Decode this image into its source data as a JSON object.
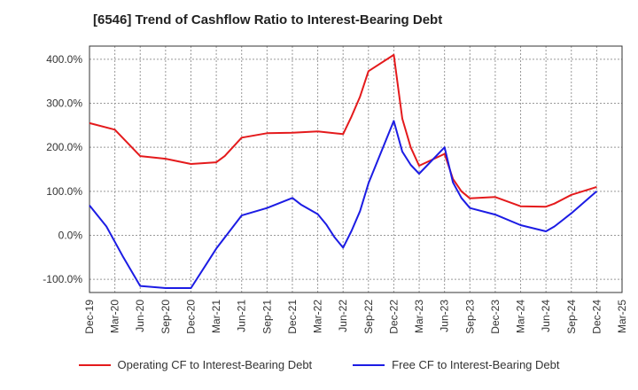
{
  "title": "[6546]  Trend of Cashflow Ratio to Interest-Bearing Debt",
  "colors": {
    "operating": "#e41a1c",
    "free": "#1c1ce4"
  },
  "chart_data": {
    "type": "line",
    "title": "[6546]  Trend of Cashflow Ratio to Interest-Bearing Debt",
    "xlabel": "",
    "ylabel": "",
    "ylim": [
      -130,
      430
    ],
    "y_ticks": [
      400,
      300,
      200,
      100,
      0,
      -100
    ],
    "y_tick_labels": [
      "400.0%",
      "300.0%",
      "200.0%",
      "100.0%",
      "0.0%",
      "-100.0%"
    ],
    "x_ticks": [
      "2019-12",
      "2020-03",
      "2020-06",
      "2020-09",
      "2020-12",
      "2021-03",
      "2021-06",
      "2021-09",
      "2021-12",
      "2022-03",
      "2022-06",
      "2022-09",
      "2022-12",
      "2023-03",
      "2023-06",
      "2023-09",
      "2023-12",
      "2024-03",
      "2024-06",
      "2024-09",
      "2024-12",
      "2025-03"
    ],
    "x_tick_labels": [
      "Dec-19",
      "Mar-20",
      "Jun-20",
      "Sep-20",
      "Dec-20",
      "Mar-21",
      "Jun-21",
      "Sep-21",
      "Dec-21",
      "Mar-22",
      "Jun-22",
      "Sep-22",
      "Dec-22",
      "Mar-23",
      "Jun-23",
      "Sep-23",
      "Dec-23",
      "Mar-24",
      "Jun-24",
      "Sep-24",
      "Dec-24",
      "Mar-25"
    ],
    "grid": true,
    "legend_position": "bottom",
    "series": [
      {
        "name": "Operating CF to Interest-Bearing Debt",
        "color_key": "operating",
        "points": [
          [
            "2019-12",
            255
          ],
          [
            "2020-03",
            240
          ],
          [
            "2020-06",
            180
          ],
          [
            "2020-09",
            174
          ],
          [
            "2020-12",
            162
          ],
          [
            "2021-03",
            166
          ],
          [
            "2021-04",
            180
          ],
          [
            "2021-06",
            222
          ],
          [
            "2021-09",
            232
          ],
          [
            "2021-12",
            233
          ],
          [
            "2022-03",
            236
          ],
          [
            "2022-06",
            230
          ],
          [
            "2022-07",
            270
          ],
          [
            "2022-08",
            315
          ],
          [
            "2022-09",
            373
          ],
          [
            "2022-12",
            410
          ],
          [
            "2023-01",
            265
          ],
          [
            "2023-02",
            200
          ],
          [
            "2023-03",
            158
          ],
          [
            "2023-06",
            185
          ],
          [
            "2023-07",
            128
          ],
          [
            "2023-08",
            100
          ],
          [
            "2023-09",
            84
          ],
          [
            "2023-12",
            87
          ],
          [
            "2024-03",
            66
          ],
          [
            "2024-06",
            65
          ],
          [
            "2024-07",
            72
          ],
          [
            "2024-09",
            92
          ],
          [
            "2024-12",
            110
          ]
        ]
      },
      {
        "name": "Free CF to Interest-Bearing Debt",
        "color_key": "free",
        "points": [
          [
            "2019-12",
            68
          ],
          [
            "2020-02",
            20
          ],
          [
            "2020-04",
            -50
          ],
          [
            "2020-06",
            -115
          ],
          [
            "2020-09",
            -120
          ],
          [
            "2020-12",
            -120
          ],
          [
            "2021-02",
            -60
          ],
          [
            "2021-03",
            -30
          ],
          [
            "2021-05",
            20
          ],
          [
            "2021-06",
            45
          ],
          [
            "2021-09",
            62
          ],
          [
            "2021-12",
            85
          ],
          [
            "2022-01",
            70
          ],
          [
            "2022-03",
            48
          ],
          [
            "2022-04",
            25
          ],
          [
            "2022-05",
            -5
          ],
          [
            "2022-06",
            -28
          ],
          [
            "2022-07",
            10
          ],
          [
            "2022-08",
            55
          ],
          [
            "2022-09",
            118
          ],
          [
            "2022-12",
            260
          ],
          [
            "2023-01",
            190
          ],
          [
            "2023-02",
            160
          ],
          [
            "2023-03",
            140
          ],
          [
            "2023-06",
            200
          ],
          [
            "2023-07",
            120
          ],
          [
            "2023-08",
            85
          ],
          [
            "2023-09",
            62
          ],
          [
            "2023-12",
            47
          ],
          [
            "2024-03",
            23
          ],
          [
            "2024-06",
            9
          ],
          [
            "2024-07",
            20
          ],
          [
            "2024-09",
            50
          ],
          [
            "2024-12",
            100
          ]
        ]
      }
    ]
  }
}
